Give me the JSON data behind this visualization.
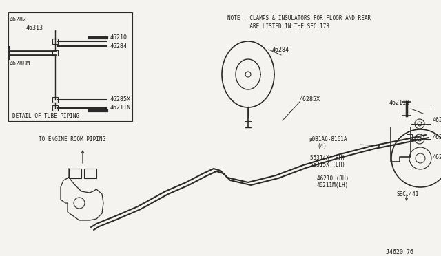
{
  "bg_color": "#f5f3ef",
  "line_color": "#2a2a2a",
  "text_color": "#1a1a1a",
  "note_line1": "NOTE : CLAMPS & INSULATORS FOR FLOOR AND REAR",
  "note_line2": "       ARE LISTED IN THE SEC.173",
  "footer": "J4620 76",
  "detail_box_title": "DETAIL OF TUBE PIPING",
  "font_size": 6.0
}
